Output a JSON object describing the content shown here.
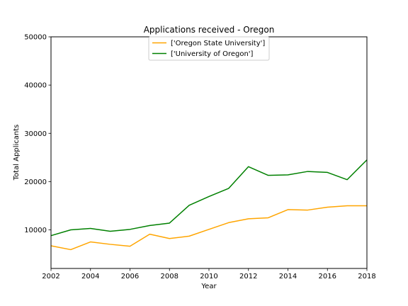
{
  "chart_data": {
    "type": "line",
    "title": "Applications received - Oregon",
    "xlabel": "Year",
    "ylabel": "Total Applicants",
    "xlim": [
      2002,
      2018
    ],
    "ylim": [
      2000,
      50000
    ],
    "xticks": [
      2002,
      2004,
      2006,
      2008,
      2010,
      2012,
      2014,
      2016,
      2018
    ],
    "yticks": [
      10000,
      20000,
      30000,
      40000,
      50000
    ],
    "grid": false,
    "legend_position": "top-center",
    "x": [
      2002,
      2003,
      2004,
      2005,
      2006,
      2007,
      2008,
      2009,
      2010,
      2011,
      2012,
      2013,
      2014,
      2015,
      2016,
      2017,
      2018
    ],
    "series": [
      {
        "name": "['Oregon State University']",
        "color": "#ffa500",
        "values": [
          6700,
          5900,
          7500,
          7000,
          6600,
          9100,
          8200,
          8700,
          10100,
          11500,
          12300,
          12500,
          14200,
          14100,
          14700,
          15000,
          15000
        ]
      },
      {
        "name": "['University of Oregon']",
        "color": "#008000",
        "values": [
          8800,
          10000,
          10300,
          9700,
          10100,
          10900,
          11400,
          15100,
          16900,
          18600,
          23100,
          21300,
          21400,
          22100,
          21900,
          20400,
          24500
        ]
      }
    ]
  }
}
